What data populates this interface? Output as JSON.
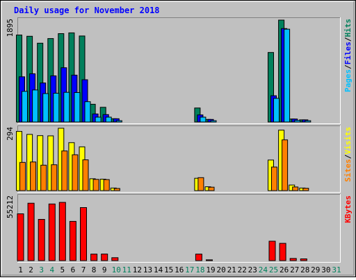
{
  "chart_data": {
    "type": "bar",
    "title": "Daily usage for November 2018",
    "categories": [
      "1",
      "2",
      "3",
      "4",
      "5",
      "6",
      "7",
      "8",
      "9",
      "10",
      "11",
      "12",
      "13",
      "14",
      "15",
      "16",
      "17",
      "18",
      "19",
      "20",
      "21",
      "22",
      "23",
      "24",
      "25",
      "26",
      "27",
      "28",
      "29",
      "30",
      "31"
    ],
    "weekend_days": [
      "3",
      "4",
      "10",
      "11",
      "17",
      "18",
      "24",
      "25",
      "31"
    ],
    "colors": {
      "background": "#c0c0c0",
      "title": "#0000ff",
      "weekday_label": "#000000",
      "weekend_label": "#00805c",
      "hits": "#00805c",
      "files": "#0000ff",
      "pages": "#00c0ff",
      "visits": "#ffff00",
      "sites": "#ff8000",
      "kbytes": "#ff0000"
    },
    "panels": [
      {
        "id": "hits-files-pages",
        "ymax_label": "1895",
        "ylim": [
          0,
          1895
        ],
        "legend": [
          {
            "text": "Hits",
            "color": "#00805c"
          },
          {
            "text": "/",
            "color": "#000000"
          },
          {
            "text": "Files",
            "color": "#0000ff"
          },
          {
            "text": "/",
            "color": "#000000"
          },
          {
            "text": "Pages",
            "color": "#00c0ff"
          }
        ],
        "series": [
          {
            "name": "Hits",
            "color": "#00805c",
            "values": [
              1618,
              1595,
              1466,
              1552,
              1643,
              1658,
              1600,
              330,
              273,
              60,
              0,
              0,
              0,
              0,
              0,
              0,
              0,
              260,
              48,
              0,
              0,
              0,
              0,
              0,
              1293,
              1895,
              56,
              40,
              0,
              0,
              0
            ]
          },
          {
            "name": "Files",
            "color": "#0000ff",
            "values": [
              840,
              897,
              726,
              859,
              1009,
              871,
              786,
              150,
              138,
              60,
              0,
              0,
              0,
              0,
              0,
              0,
              0,
              132,
              48,
              0,
              0,
              0,
              0,
              0,
              488,
              1738,
              56,
              40,
              0,
              0,
              0
            ]
          },
          {
            "name": "Pages",
            "color": "#00c0ff",
            "values": [
              570,
              595,
              529,
              535,
              552,
              548,
              378,
              90,
              90,
              25,
              0,
              0,
              0,
              0,
              0,
              0,
              0,
              90,
              25,
              0,
              0,
              0,
              0,
              0,
              440,
              1726,
              30,
              24,
              0,
              0,
              0
            ]
          }
        ]
      },
      {
        "id": "visits-sites",
        "ymax_label": "294",
        "ylim": [
          0,
          294
        ],
        "legend": [
          {
            "text": "Visits",
            "color": "#ffff00"
          },
          {
            "text": "/",
            "color": "#000000"
          },
          {
            "text": "Sites",
            "color": "#ff8000"
          }
        ],
        "series": [
          {
            "name": "Visits",
            "color": "#ffff00",
            "values": [
              279,
              265,
              259,
              258,
              294,
              226,
              206,
              56,
              54,
              12,
              0,
              0,
              0,
              0,
              0,
              0,
              0,
              58,
              18,
              0,
              0,
              0,
              0,
              0,
              144,
              285,
              26,
              12,
              0,
              0,
              0
            ]
          },
          {
            "name": "Sites",
            "color": "#ff8000",
            "values": [
              133,
              135,
              120,
              122,
              187,
              169,
              145,
              53,
              52,
              10,
              0,
              0,
              0,
              0,
              0,
              0,
              0,
              61,
              16,
              0,
              0,
              0,
              0,
              0,
              111,
              239,
              17,
              11,
              0,
              0,
              0
            ]
          }
        ]
      },
      {
        "id": "kbytes",
        "ymax_label": "55212",
        "ylim": [
          0,
          55212
        ],
        "legend": [
          {
            "text": "KBytes",
            "color": "#ff0000"
          }
        ],
        "series": [
          {
            "name": "KBytes",
            "color": "#ff0000",
            "values": [
              40500,
              49720,
              35680,
              49044,
              50410,
              33980,
              45900,
              5625,
              5690,
              2540,
              0,
              0,
              0,
              0,
              0,
              0,
              0,
              5640,
              660,
              0,
              0,
              0,
              0,
              0,
              16830,
              14920,
              1850,
              1480,
              0,
              0,
              0
            ]
          }
        ]
      }
    ]
  }
}
